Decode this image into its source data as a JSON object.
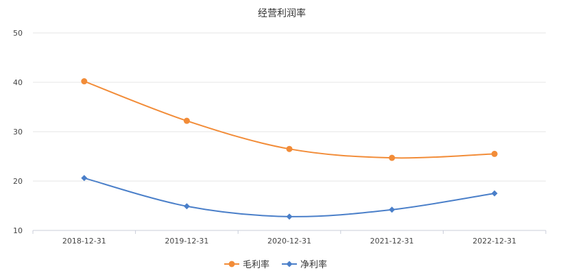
{
  "chart_data": {
    "type": "line",
    "title": "经营利润率",
    "xlabel": "",
    "ylabel": "",
    "categories": [
      "2018-12-31",
      "2019-12-31",
      "2020-12-31",
      "2021-12-31",
      "2022-12-31"
    ],
    "ylim": [
      10,
      50
    ],
    "yticks": [
      "10",
      "20",
      "30",
      "40",
      "50"
    ],
    "grid": true,
    "legend_position": "bottom",
    "series": [
      {
        "name": "毛利率",
        "values": [
          40.2,
          32.2,
          26.5,
          24.7,
          25.5
        ],
        "color": "#F28C38",
        "marker": "circle"
      },
      {
        "name": "净利率",
        "values": [
          20.6,
          14.9,
          12.8,
          14.2,
          17.5
        ],
        "color": "#4A7FC9",
        "marker": "diamond"
      }
    ]
  }
}
